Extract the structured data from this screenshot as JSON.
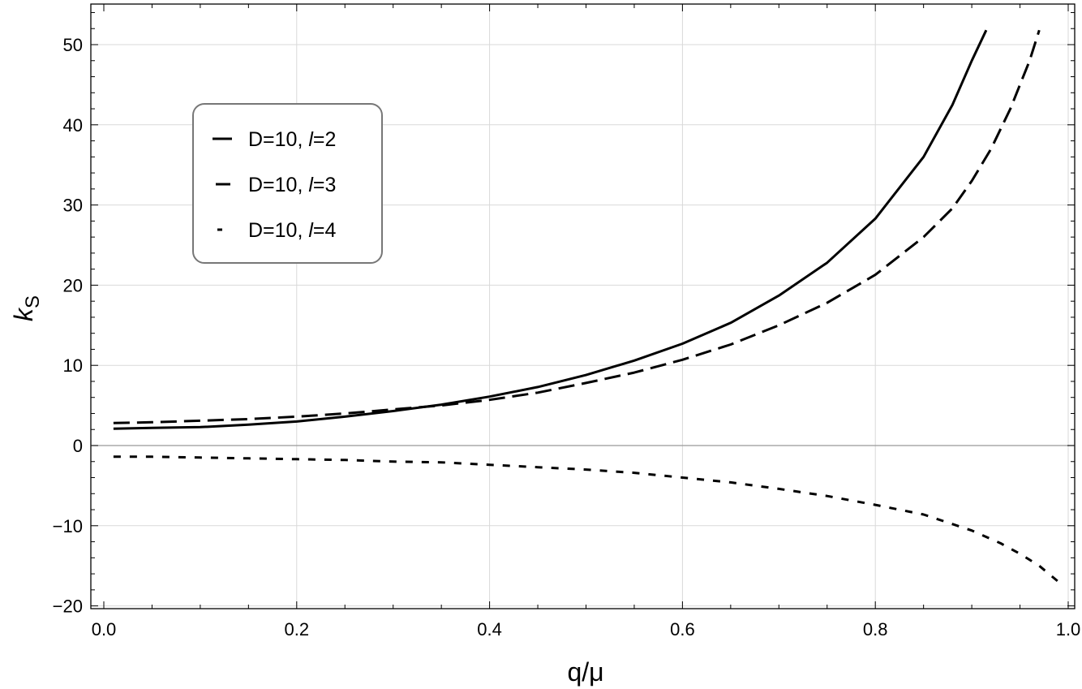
{
  "chart_data": {
    "type": "line",
    "xlabel": "q/μ",
    "ylabel": {
      "base": "k",
      "sub": "S"
    },
    "xlim": [
      0.0,
      1.0
    ],
    "ylim": [
      -20,
      55
    ],
    "xticks": [
      0.0,
      0.2,
      0.4,
      0.6,
      0.8,
      1.0
    ],
    "xtick_labels": [
      "0.0",
      "0.2",
      "0.4",
      "0.6",
      "0.8",
      "1.0"
    ],
    "yticks": [
      -20,
      -10,
      0,
      10,
      20,
      30,
      40,
      50
    ],
    "ytick_labels": [
      "−20",
      "−10",
      "0",
      "10",
      "20",
      "30",
      "40",
      "50"
    ],
    "grid": true,
    "legend_position": "top-left",
    "series": [
      {
        "name": "D=10, l=2",
        "legend": {
          "pre": "D=10, ",
          "italic": "l",
          "post": "=2"
        },
        "style": "solid",
        "color": "#000000",
        "x": [
          0.01,
          0.05,
          0.1,
          0.15,
          0.2,
          0.25,
          0.3,
          0.35,
          0.4,
          0.45,
          0.5,
          0.55,
          0.6,
          0.65,
          0.7,
          0.75,
          0.8,
          0.85,
          0.88,
          0.9,
          0.915
        ],
        "y": [
          2.1,
          2.2,
          2.3,
          2.6,
          3.0,
          3.6,
          4.3,
          5.1,
          6.1,
          7.3,
          8.8,
          10.6,
          12.7,
          15.3,
          18.7,
          22.8,
          28.3,
          36.0,
          42.5,
          48.0,
          51.8
        ]
      },
      {
        "name": "D=10, l=3",
        "legend": {
          "pre": "D=10, ",
          "italic": "l",
          "post": "=3"
        },
        "style": "dashed",
        "color": "#000000",
        "x": [
          0.01,
          0.05,
          0.1,
          0.15,
          0.2,
          0.25,
          0.3,
          0.35,
          0.4,
          0.45,
          0.5,
          0.55,
          0.6,
          0.65,
          0.7,
          0.75,
          0.8,
          0.85,
          0.88,
          0.9,
          0.92,
          0.94,
          0.96,
          0.97
        ],
        "y": [
          2.8,
          2.9,
          3.1,
          3.3,
          3.6,
          4.0,
          4.5,
          5.0,
          5.7,
          6.6,
          7.8,
          9.1,
          10.7,
          12.6,
          15.0,
          17.8,
          21.3,
          26.0,
          29.6,
          33.0,
          37.0,
          42.0,
          48.0,
          51.8
        ]
      },
      {
        "name": "D=10, l=4",
        "legend": {
          "pre": "D=10, ",
          "italic": "l",
          "post": "=4"
        },
        "style": "dotted",
        "color": "#000000",
        "x": [
          0.01,
          0.05,
          0.1,
          0.15,
          0.2,
          0.25,
          0.3,
          0.35,
          0.4,
          0.45,
          0.5,
          0.55,
          0.6,
          0.65,
          0.7,
          0.75,
          0.8,
          0.85,
          0.9,
          0.93,
          0.95,
          0.97,
          0.99
        ],
        "y": [
          -1.4,
          -1.4,
          -1.5,
          -1.6,
          -1.7,
          -1.8,
          -2.0,
          -2.1,
          -2.4,
          -2.7,
          -3.0,
          -3.4,
          -4.0,
          -4.6,
          -5.4,
          -6.3,
          -7.4,
          -8.6,
          -10.6,
          -12.2,
          -13.5,
          -15.0,
          -17.0
        ]
      }
    ]
  }
}
